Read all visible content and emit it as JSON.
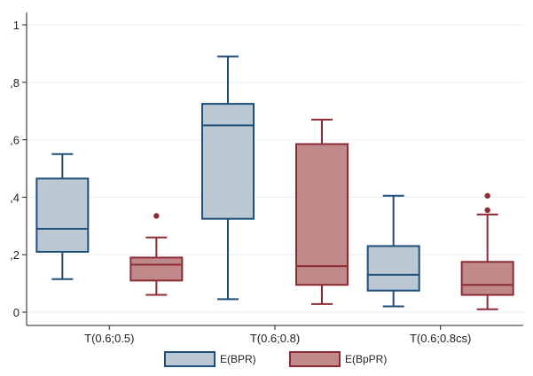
{
  "chart_data": {
    "type": "box",
    "categories": [
      "T(0.6;0.5)",
      "T(0.6;0.8)",
      "T(0.6;0.8cs)"
    ],
    "ylim": [
      0,
      1
    ],
    "yticks": [
      {
        "value": 0,
        "label": "0"
      },
      {
        "value": 0.2,
        "label": ",2"
      },
      {
        "value": 0.4,
        "label": ",4"
      },
      {
        "value": 0.6,
        "label": ",6"
      },
      {
        "value": 0.8,
        "label": ",8"
      },
      {
        "value": 1,
        "label": "1"
      }
    ],
    "grid": true,
    "legend_position": "bottom",
    "series": [
      {
        "name": "E(BPR)",
        "fill": "#b9c8d3",
        "stroke": "#1f4e79",
        "boxes": [
          {
            "whisker_low": 0.115,
            "q1": 0.21,
            "median": 0.29,
            "q3": 0.465,
            "whisker_high": 0.55,
            "outliers": []
          },
          {
            "whisker_low": 0.045,
            "q1": 0.325,
            "median": 0.65,
            "q3": 0.725,
            "whisker_high": 0.89,
            "outliers": []
          },
          {
            "whisker_low": 0.02,
            "q1": 0.075,
            "median": 0.13,
            "q3": 0.23,
            "whisker_high": 0.405,
            "outliers": []
          }
        ]
      },
      {
        "name": "E(BpPR)",
        "fill": "#c08a8a",
        "stroke": "#8b2c34",
        "boxes": [
          {
            "whisker_low": 0.06,
            "q1": 0.11,
            "median": 0.165,
            "q3": 0.19,
            "whisker_high": 0.26,
            "outliers": [
              0.335
            ]
          },
          {
            "whisker_low": 0.028,
            "q1": 0.095,
            "median": 0.16,
            "q3": 0.585,
            "whisker_high": 0.67,
            "outliers": []
          },
          {
            "whisker_low": 0.01,
            "q1": 0.06,
            "median": 0.095,
            "q3": 0.175,
            "whisker_high": 0.34,
            "outliers": [
              0.355,
              0.405
            ]
          }
        ]
      }
    ]
  }
}
